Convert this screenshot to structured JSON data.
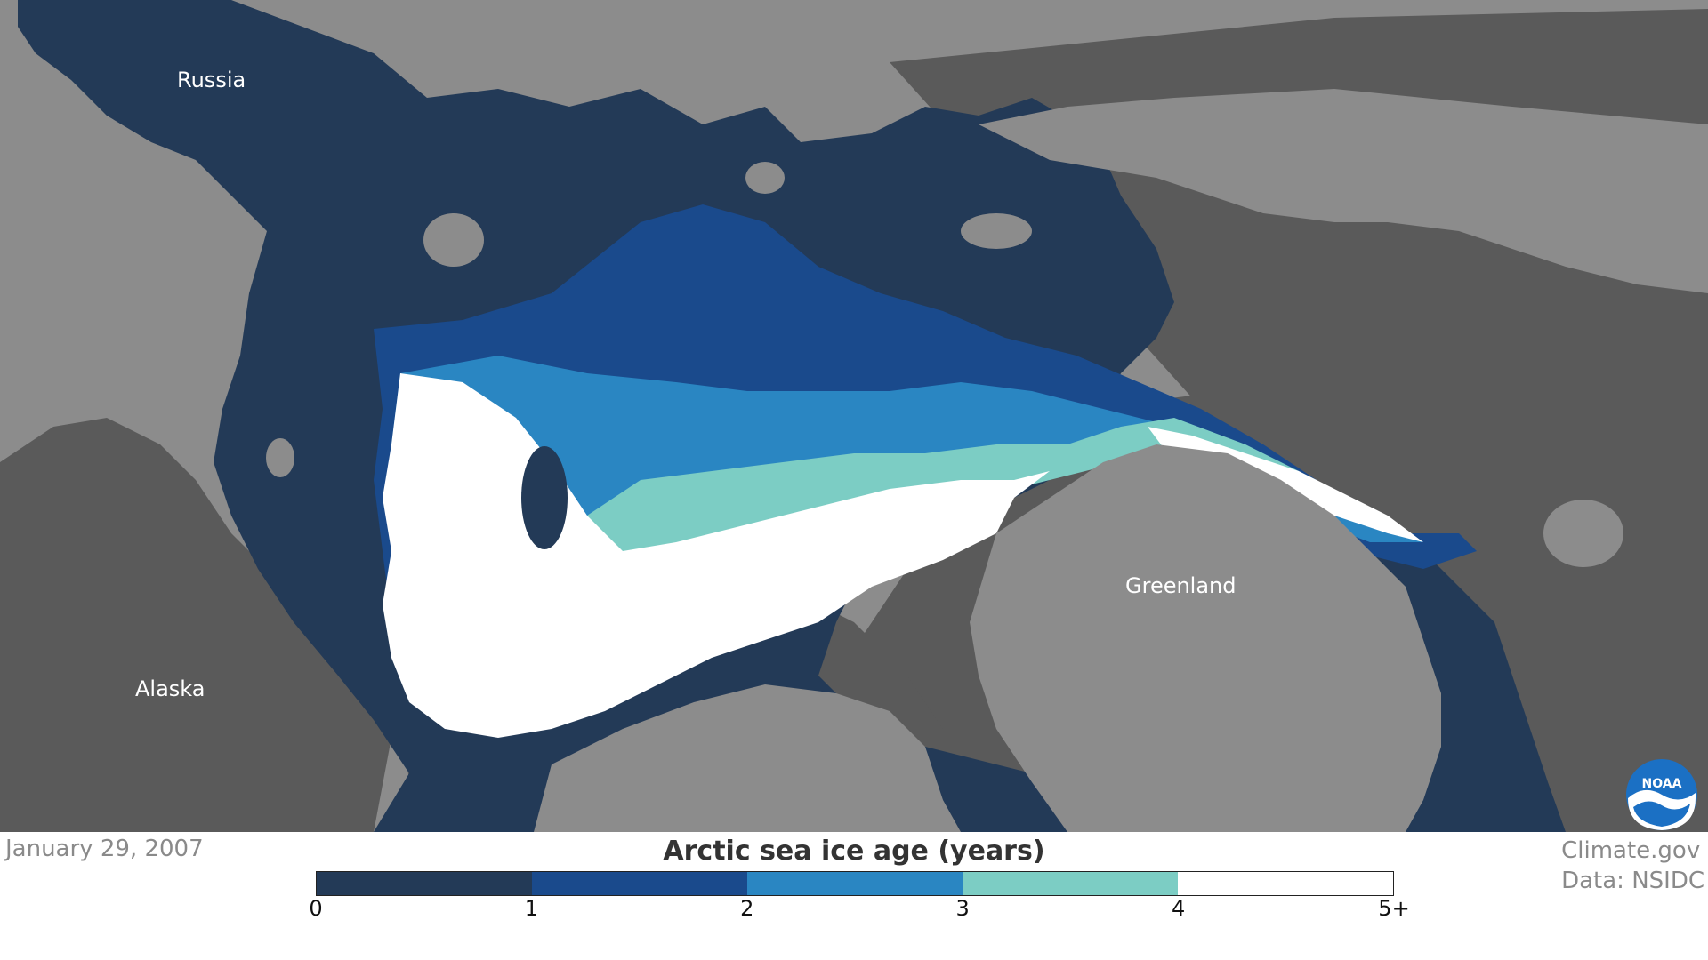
{
  "map": {
    "labels": {
      "russia": "Russia",
      "alaska": "Alaska",
      "greenland": "Greenland"
    },
    "colors": {
      "land": "#8c8c8c",
      "coast_shelf": "#5a5a5a",
      "open_water": "#233a57",
      "ice_0_1": "#233a57",
      "ice_1_2": "#1a4a8c",
      "ice_2_3": "#2a86c2",
      "ice_3_4": "#7ccdc4",
      "ice_4_5plus": "#ffffff"
    }
  },
  "footer": {
    "date": "January 29, 2007",
    "legend_title": "Arctic sea ice age (years)",
    "legend_colors": [
      "#233a57",
      "#1a4a8c",
      "#2a86c2",
      "#7ccdc4",
      "#ffffff"
    ],
    "legend_ticks": [
      "0",
      "1",
      "2",
      "3",
      "4",
      "5+"
    ],
    "credit_line1": "Climate.gov",
    "credit_line2": "Data: NSIDC"
  },
  "logo": {
    "icon": "noaa-logo-icon",
    "text": "NOAA"
  }
}
